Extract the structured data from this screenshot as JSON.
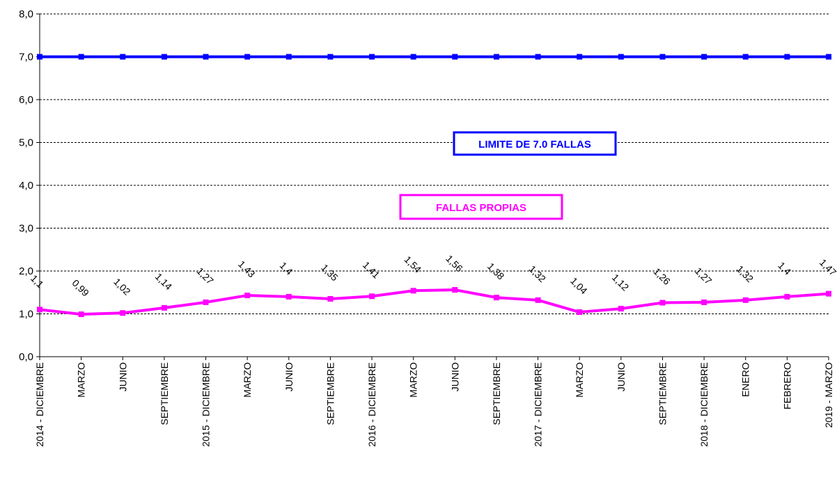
{
  "chart_data": {
    "type": "line",
    "categories": [
      "2014 - DICIEMBRE",
      "MARZO",
      "JUNIO",
      "SEPTIEMBRE",
      "2015 - DICIEMBRE",
      "MARZO",
      "JUNIO",
      "SEPTIEMBRE",
      "2016 - DICIEMBRE",
      "MARZO",
      "JUNIO",
      "SEPTIEMBRE",
      "2017 - DICIEMBRE",
      "MARZO",
      "JUNIO",
      "SEPTIEMBRE",
      "2018 - DICIEMBRE",
      "ENERO",
      "FEBRERO",
      "2019 - MARZO"
    ],
    "series": [
      {
        "name": "LIMITE DE 7.0 FALLAS",
        "color": "#0000ff",
        "values": [
          7,
          7,
          7,
          7,
          7,
          7,
          7,
          7,
          7,
          7,
          7,
          7,
          7,
          7,
          7,
          7,
          7,
          7,
          7,
          7
        ]
      },
      {
        "name": "FALLAS PROPIAS",
        "color": "#ff00ff",
        "values": [
          1.1,
          0.99,
          1.02,
          1.14,
          1.27,
          1.43,
          1.4,
          1.35,
          1.41,
          1.54,
          1.56,
          1.38,
          1.32,
          1.04,
          1.12,
          1.26,
          1.27,
          1.32,
          1.4,
          1.47
        ],
        "data_labels": [
          "1,1",
          "0,99",
          "1,02",
          "1,14",
          "1,27",
          "1,43",
          "1,4",
          "1,35",
          "1,41",
          "1,54",
          "1,56",
          "1,38",
          "1,32",
          "1,04",
          "1,12",
          "1,26",
          "1,27",
          "1,32",
          "1,4",
          "1,47"
        ]
      }
    ],
    "y_ticks": [
      "0,0",
      "1,0",
      "2,0",
      "3,0",
      "4,0",
      "5,0",
      "6,0",
      "7,0",
      "8,0"
    ],
    "ylim": [
      0,
      8
    ],
    "title": "",
    "xlabel": "",
    "ylabel": "",
    "grid": "horizontal dashed",
    "legend": "inline labels in plot area"
  }
}
